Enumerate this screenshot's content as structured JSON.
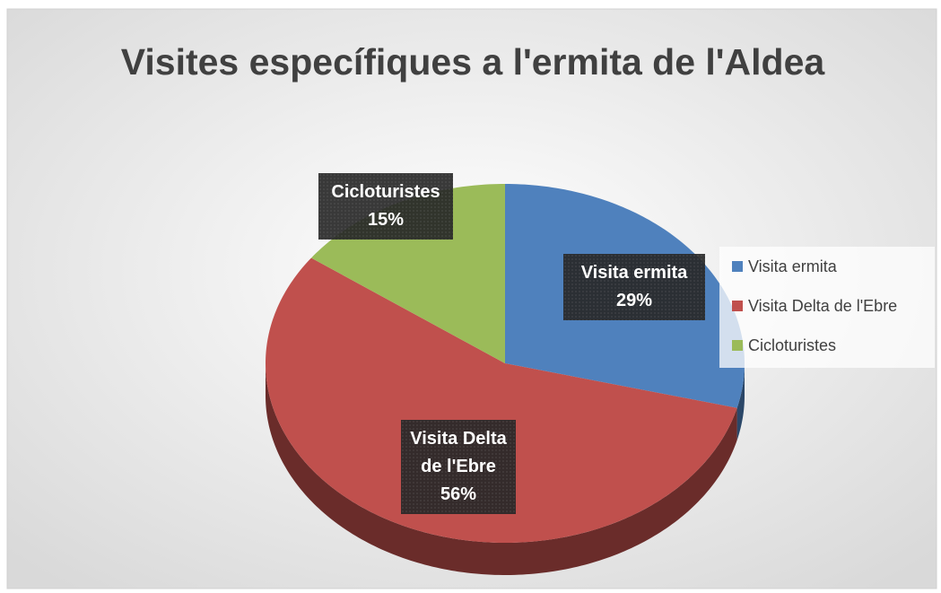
{
  "chart_data": {
    "type": "pie",
    "title": "Visites específiques a l'ermita de l'Aldea",
    "categories": [
      "Visita ermita",
      "Visita Delta de l'Ebre",
      "Cicloturistes"
    ],
    "values": [
      29,
      56,
      15
    ],
    "value_labels": [
      "29%",
      "56%",
      "15%"
    ],
    "colors": [
      "#4f81bd",
      "#c0504d",
      "#9bbb59"
    ],
    "legend": "right"
  }
}
